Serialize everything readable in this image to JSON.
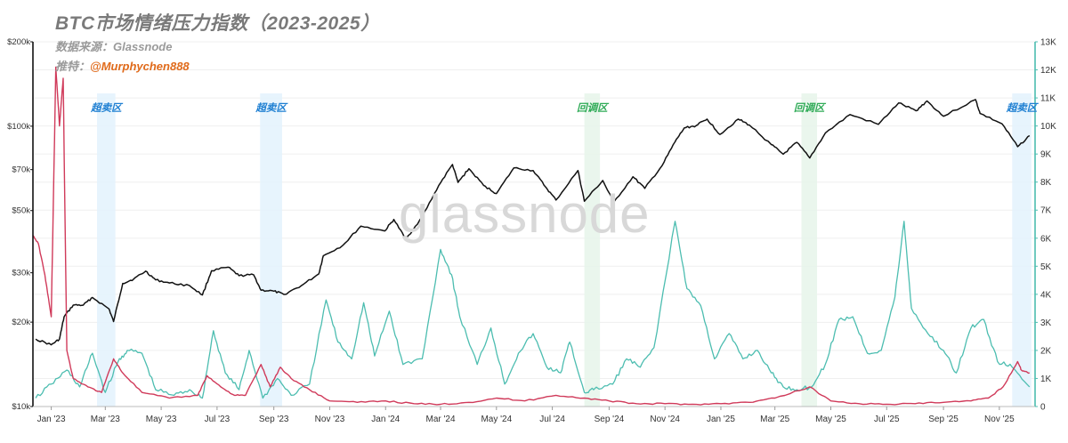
{
  "title": "BTC市场情绪压力指数（2023-2025）",
  "source_label": "数据来源：",
  "source_value": "Glassnode",
  "twitter_label": "推特：",
  "twitter_handle": "@Murphychen888",
  "watermark": "glassnode",
  "colors": {
    "price": "#111111",
    "teal": "#4cbdb0",
    "red": "#d03a5a",
    "oversold_band": "#e3f2fd",
    "pullback_band": "#e6f5ea",
    "oversold_text": "#1e7fd2",
    "pullback_text": "#2fab57",
    "grid": "#efefef",
    "right_axis": "#4cbdb0"
  },
  "chart_data": {
    "type": "line",
    "x_range": [
      "2022-12-12",
      "2025-12-10"
    ],
    "x_ticks": [
      {
        "date": "2023-01-01",
        "label": "Jan '23"
      },
      {
        "date": "2023-03-01",
        "label": "Mar '23"
      },
      {
        "date": "2023-05-01",
        "label": "May '23"
      },
      {
        "date": "2023-07-01",
        "label": "Jul '23"
      },
      {
        "date": "2023-09-01",
        "label": "Sep '23"
      },
      {
        "date": "2023-11-01",
        "label": "Nov '23"
      },
      {
        "date": "2024-01-01",
        "label": "Jan '24"
      },
      {
        "date": "2024-03-01",
        "label": "Mar '24"
      },
      {
        "date": "2024-05-01",
        "label": "May '24"
      },
      {
        "date": "2024-07-01",
        "label": "Jul '24"
      },
      {
        "date": "2024-09-01",
        "label": "Sep '24"
      },
      {
        "date": "2024-11-01",
        "label": "Nov '24"
      },
      {
        "date": "2025-01-01",
        "label": "Jan '25"
      },
      {
        "date": "2025-03-01",
        "label": "Mar '25"
      },
      {
        "date": "2025-05-01",
        "label": "May '25"
      },
      {
        "date": "2025-07-01",
        "label": "Jul '25"
      },
      {
        "date": "2025-09-01",
        "label": "Sep '25"
      },
      {
        "date": "2025-11-01",
        "label": "Nov '25"
      }
    ],
    "y_left": {
      "scale": "log",
      "range": [
        10000,
        200000
      ],
      "ticks": [
        {
          "value": 10000,
          "label": "$10k"
        },
        {
          "value": 20000,
          "label": "$20k"
        },
        {
          "value": 30000,
          "label": "$30k"
        },
        {
          "value": 50000,
          "label": "$50k"
        },
        {
          "value": 70000,
          "label": "$70k"
        },
        {
          "value": 100000,
          "label": "$100k"
        },
        {
          "value": 200000,
          "label": "$200k"
        }
      ]
    },
    "y_right": {
      "scale": "linear",
      "range": [
        0,
        13000
      ],
      "ticks": [
        {
          "value": 0,
          "label": "0"
        },
        {
          "value": 1000,
          "label": "1K"
        },
        {
          "value": 2000,
          "label": "2K"
        },
        {
          "value": 3000,
          "label": "3K"
        },
        {
          "value": 4000,
          "label": "4K"
        },
        {
          "value": 5000,
          "label": "5K"
        },
        {
          "value": 6000,
          "label": "6K"
        },
        {
          "value": 7000,
          "label": "7K"
        },
        {
          "value": 8000,
          "label": "8K"
        },
        {
          "value": 9000,
          "label": "9K"
        },
        {
          "value": 10000,
          "label": "10K"
        },
        {
          "value": 11000,
          "label": "11K"
        },
        {
          "value": 12000,
          "label": "12K"
        },
        {
          "value": 13000,
          "label": "13K"
        }
      ]
    },
    "grid": true,
    "zones": [
      {
        "label": "超卖区",
        "kind": "oversold",
        "start": "2023-02-20",
        "end": "2023-03-12"
      },
      {
        "label": "超卖区",
        "kind": "oversold",
        "start": "2023-08-17",
        "end": "2023-09-10"
      },
      {
        "label": "回调区",
        "kind": "pullback",
        "start": "2024-08-05",
        "end": "2024-08-22"
      },
      {
        "label": "回调区",
        "kind": "pullback",
        "start": "2025-03-30",
        "end": "2025-04-16"
      },
      {
        "label": "超卖区",
        "kind": "oversold",
        "start": "2025-11-15",
        "end": "2025-12-06"
      }
    ],
    "series": [
      {
        "axis": "left",
        "points": [
          [
            "2022-12-15",
            17400
          ],
          [
            "2023-01-01",
            16600
          ],
          [
            "2023-01-10",
            17400
          ],
          [
            "2023-01-15",
            20900
          ],
          [
            "2023-01-25",
            23000
          ],
          [
            "2023-02-05",
            23000
          ],
          [
            "2023-02-15",
            24500
          ],
          [
            "2023-03-05",
            22300
          ],
          [
            "2023-03-10",
            20100
          ],
          [
            "2023-03-20",
            27500
          ],
          [
            "2023-04-01",
            28500
          ],
          [
            "2023-04-14",
            30400
          ],
          [
            "2023-04-25",
            28300
          ],
          [
            "2023-05-10",
            27600
          ],
          [
            "2023-06-01",
            27000
          ],
          [
            "2023-06-15",
            25000
          ],
          [
            "2023-06-25",
            30500
          ],
          [
            "2023-07-13",
            31400
          ],
          [
            "2023-07-25",
            29300
          ],
          [
            "2023-08-10",
            29500
          ],
          [
            "2023-08-18",
            26000
          ],
          [
            "2023-09-01",
            25800
          ],
          [
            "2023-09-12",
            25100
          ],
          [
            "2023-10-01",
            27000
          ],
          [
            "2023-10-20",
            29700
          ],
          [
            "2023-10-25",
            34500
          ],
          [
            "2023-11-15",
            37500
          ],
          [
            "2023-12-05",
            44000
          ],
          [
            "2023-12-31",
            42300
          ],
          [
            "2024-01-10",
            46500
          ],
          [
            "2024-01-23",
            39500
          ],
          [
            "2024-02-10",
            47500
          ],
          [
            "2024-02-28",
            61500
          ],
          [
            "2024-03-14",
            73000
          ],
          [
            "2024-03-20",
            63000
          ],
          [
            "2024-04-01",
            70500
          ],
          [
            "2024-04-17",
            61500
          ],
          [
            "2024-05-01",
            57500
          ],
          [
            "2024-05-20",
            71000
          ],
          [
            "2024-06-10",
            69500
          ],
          [
            "2024-06-24",
            60500
          ],
          [
            "2024-07-05",
            54500
          ],
          [
            "2024-07-29",
            69500
          ],
          [
            "2024-08-05",
            54000
          ],
          [
            "2024-08-25",
            64000
          ],
          [
            "2024-09-06",
            53500
          ],
          [
            "2024-09-27",
            66000
          ],
          [
            "2024-10-10",
            60000
          ],
          [
            "2024-10-29",
            72500
          ],
          [
            "2024-11-12",
            88000
          ],
          [
            "2024-11-22",
            98500
          ],
          [
            "2024-12-05",
            100500
          ],
          [
            "2024-12-17",
            106000
          ],
          [
            "2024-12-31",
            93500
          ],
          [
            "2025-01-20",
            106000
          ],
          [
            "2025-02-01",
            101000
          ],
          [
            "2025-02-25",
            86000
          ],
          [
            "2025-03-10",
            79500
          ],
          [
            "2025-03-25",
            87500
          ],
          [
            "2025-04-08",
            77000
          ],
          [
            "2025-04-25",
            94500
          ],
          [
            "2025-05-22",
            110000
          ],
          [
            "2025-06-22",
            101500
          ],
          [
            "2025-07-14",
            121000
          ],
          [
            "2025-08-02",
            113500
          ],
          [
            "2025-08-14",
            123000
          ],
          [
            "2025-09-01",
            108500
          ],
          [
            "2025-10-06",
            124500
          ],
          [
            "2025-10-11",
            111000
          ],
          [
            "2025-11-04",
            102000
          ],
          [
            "2025-11-21",
            84500
          ],
          [
            "2025-12-04",
            92500
          ]
        ]
      },
      {
        "axis": "right",
        "points": [
          [
            "2022-12-15",
            300
          ],
          [
            "2023-01-01",
            800
          ],
          [
            "2023-01-18",
            1300
          ],
          [
            "2023-02-01",
            700
          ],
          [
            "2023-02-15",
            1900
          ],
          [
            "2023-03-01",
            500
          ],
          [
            "2023-03-15",
            1600
          ],
          [
            "2023-03-25",
            2000
          ],
          [
            "2023-04-10",
            1900
          ],
          [
            "2023-04-25",
            600
          ],
          [
            "2023-05-15",
            400
          ],
          [
            "2023-06-01",
            600
          ],
          [
            "2023-06-15",
            300
          ],
          [
            "2023-06-27",
            2700
          ],
          [
            "2023-07-10",
            1200
          ],
          [
            "2023-07-25",
            600
          ],
          [
            "2023-08-05",
            2000
          ],
          [
            "2023-08-20",
            300
          ],
          [
            "2023-09-05",
            1000
          ],
          [
            "2023-09-20",
            400
          ],
          [
            "2023-10-10",
            800
          ],
          [
            "2023-10-28",
            3800
          ],
          [
            "2023-11-10",
            2300
          ],
          [
            "2023-11-25",
            1700
          ],
          [
            "2023-12-08",
            3700
          ],
          [
            "2023-12-20",
            1800
          ],
          [
            "2024-01-05",
            3400
          ],
          [
            "2024-01-20",
            1500
          ],
          [
            "2024-02-10",
            1700
          ],
          [
            "2024-03-01",
            5600
          ],
          [
            "2024-03-13",
            4700
          ],
          [
            "2024-03-22",
            3200
          ],
          [
            "2024-04-10",
            1500
          ],
          [
            "2024-04-25",
            2800
          ],
          [
            "2024-05-10",
            800
          ],
          [
            "2024-05-25",
            1900
          ],
          [
            "2024-06-10",
            2600
          ],
          [
            "2024-06-25",
            1400
          ],
          [
            "2024-07-10",
            1200
          ],
          [
            "2024-07-20",
            2300
          ],
          [
            "2024-08-05",
            500
          ],
          [
            "2024-08-15",
            600
          ],
          [
            "2024-09-05",
            800
          ],
          [
            "2024-09-20",
            1700
          ],
          [
            "2024-10-05",
            1400
          ],
          [
            "2024-10-20",
            2100
          ],
          [
            "2024-11-12",
            6600
          ],
          [
            "2024-11-25",
            4200
          ],
          [
            "2024-12-10",
            3600
          ],
          [
            "2024-12-25",
            1700
          ],
          [
            "2025-01-10",
            2600
          ],
          [
            "2025-01-25",
            1700
          ],
          [
            "2025-02-10",
            2000
          ],
          [
            "2025-02-25",
            1200
          ],
          [
            "2025-03-10",
            700
          ],
          [
            "2025-03-25",
            600
          ],
          [
            "2025-04-10",
            700
          ],
          [
            "2025-04-25",
            1500
          ],
          [
            "2025-05-10",
            3100
          ],
          [
            "2025-05-25",
            3200
          ],
          [
            "2025-06-10",
            1900
          ],
          [
            "2025-06-25",
            2000
          ],
          [
            "2025-07-10",
            3900
          ],
          [
            "2025-07-20",
            6600
          ],
          [
            "2025-07-28",
            3500
          ],
          [
            "2025-08-15",
            2600
          ],
          [
            "2025-09-01",
            2000
          ],
          [
            "2025-09-15",
            1200
          ],
          [
            "2025-10-01",
            2800
          ],
          [
            "2025-10-15",
            3100
          ],
          [
            "2025-10-30",
            1600
          ],
          [
            "2025-11-15",
            1400
          ],
          [
            "2025-12-04",
            700
          ]
        ]
      },
      {
        "axis": "right",
        "points": [
          [
            "2022-12-12",
            6100
          ],
          [
            "2022-12-18",
            5800
          ],
          [
            "2022-12-25",
            4700
          ],
          [
            "2023-01-01",
            3200
          ],
          [
            "2023-01-06",
            12100
          ],
          [
            "2023-01-10",
            10000
          ],
          [
            "2023-01-14",
            11700
          ],
          [
            "2023-01-18",
            2000
          ],
          [
            "2023-01-25",
            1000
          ],
          [
            "2023-02-10",
            700
          ],
          [
            "2023-02-25",
            500
          ],
          [
            "2023-03-10",
            1700
          ],
          [
            "2023-03-20",
            1200
          ],
          [
            "2023-04-10",
            500
          ],
          [
            "2023-05-10",
            300
          ],
          [
            "2023-06-10",
            400
          ],
          [
            "2023-06-20",
            1100
          ],
          [
            "2023-07-05",
            700
          ],
          [
            "2023-07-20",
            400
          ],
          [
            "2023-08-01",
            400
          ],
          [
            "2023-08-18",
            1500
          ],
          [
            "2023-08-28",
            700
          ],
          [
            "2023-09-08",
            1400
          ],
          [
            "2023-09-20",
            1000
          ],
          [
            "2023-10-10",
            600
          ],
          [
            "2023-11-01",
            200
          ],
          [
            "2023-12-01",
            150
          ],
          [
            "2024-01-01",
            200
          ],
          [
            "2024-02-01",
            100
          ],
          [
            "2024-03-01",
            80
          ],
          [
            "2024-04-01",
            150
          ],
          [
            "2024-05-01",
            300
          ],
          [
            "2024-06-01",
            200
          ],
          [
            "2024-07-05",
            400
          ],
          [
            "2024-08-05",
            300
          ],
          [
            "2024-09-01",
            200
          ],
          [
            "2024-10-01",
            100
          ],
          [
            "2024-11-01",
            100
          ],
          [
            "2024-12-01",
            80
          ],
          [
            "2025-01-01",
            100
          ],
          [
            "2025-02-01",
            150
          ],
          [
            "2025-03-01",
            300
          ],
          [
            "2025-04-08",
            700
          ],
          [
            "2025-05-01",
            200
          ],
          [
            "2025-06-01",
            100
          ],
          [
            "2025-07-01",
            80
          ],
          [
            "2025-08-01",
            100
          ],
          [
            "2025-09-01",
            150
          ],
          [
            "2025-10-01",
            200
          ],
          [
            "2025-10-20",
            300
          ],
          [
            "2025-11-05",
            700
          ],
          [
            "2025-11-21",
            1600
          ],
          [
            "2025-11-25",
            1300
          ],
          [
            "2025-12-04",
            1200
          ]
        ]
      }
    ]
  }
}
